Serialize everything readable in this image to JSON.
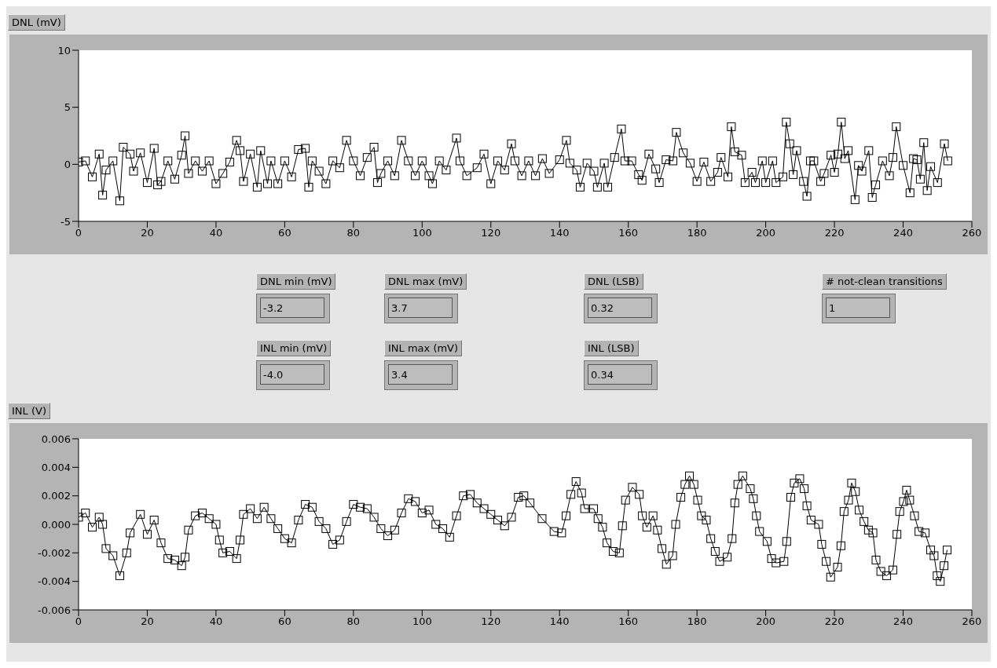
{
  "chart_data": [
    {
      "type": "line",
      "title": "DNL (mV)",
      "xlim": [
        0,
        260
      ],
      "xticks": [
        0,
        20,
        40,
        60,
        80,
        100,
        120,
        140,
        160,
        180,
        200,
        220,
        240,
        260
      ],
      "ylim": [
        -5,
        10
      ],
      "yticks": [
        -5,
        0,
        5,
        10
      ],
      "grid": false,
      "marker": "square",
      "line_style": "solid",
      "legend": false,
      "series": [
        {
          "color": "#000000",
          "x": [
            0,
            2,
            4,
            6,
            7,
            8,
            10,
            12,
            13,
            15,
            16,
            18,
            20,
            22,
            23,
            24,
            26,
            28,
            30,
            31,
            32,
            34,
            36,
            38,
            40,
            42,
            44,
            46,
            47,
            48,
            50,
            52,
            53,
            55,
            56,
            58,
            60,
            62,
            64,
            66,
            67,
            68,
            70,
            72,
            74,
            76,
            78,
            80,
            82,
            84,
            86,
            87,
            88,
            90,
            92,
            94,
            96,
            98,
            100,
            102,
            103,
            105,
            107,
            110,
            111,
            113,
            116,
            118,
            120,
            122,
            124,
            126,
            127,
            129,
            131,
            133,
            135,
            137,
            140,
            142,
            143,
            145,
            146,
            148,
            150,
            151,
            153,
            154,
            156,
            158,
            159,
            161,
            163,
            164,
            166,
            168,
            169,
            171,
            173,
            174,
            176,
            178,
            180,
            182,
            184,
            186,
            187,
            189,
            190,
            191,
            193,
            194,
            196,
            197,
            199,
            200,
            202,
            203,
            205,
            206,
            207,
            208,
            209,
            211,
            212,
            213,
            214,
            216,
            217,
            219,
            220,
            221,
            222,
            223,
            224,
            226,
            227,
            228,
            230,
            231,
            232,
            234,
            236,
            237,
            238,
            240,
            242,
            243,
            244,
            245,
            246,
            247,
            248,
            250,
            252,
            253
          ],
          "values": [
            0.2,
            0.3,
            -1.1,
            0.9,
            -2.7,
            -0.5,
            0.3,
            -3.2,
            1.5,
            0.9,
            -0.6,
            1.0,
            -1.6,
            1.4,
            -1.8,
            -1.5,
            0.3,
            -1.3,
            0.8,
            2.5,
            -0.8,
            0.3,
            -0.6,
            0.3,
            -1.7,
            -0.8,
            0.2,
            2.1,
            1.2,
            -1.5,
            0.9,
            -2.0,
            1.2,
            -1.7,
            0.3,
            -1.7,
            0.3,
            -1.1,
            1.3,
            1.4,
            -2.0,
            0.3,
            -0.6,
            -1.7,
            0.3,
            -0.3,
            2.1,
            0.3,
            -1.0,
            0.6,
            1.5,
            -1.6,
            -0.8,
            0.3,
            -1.0,
            2.1,
            0.3,
            -1.0,
            0.3,
            -1.0,
            -1.7,
            0.3,
            -0.5,
            2.3,
            0.3,
            -1.0,
            -0.3,
            0.9,
            -1.7,
            0.3,
            -0.5,
            1.8,
            0.3,
            -1.0,
            0.3,
            -1.0,
            0.5,
            -0.8,
            0.4,
            2.1,
            0.1,
            -0.5,
            -2.0,
            0.1,
            -0.6,
            -2.0,
            0.1,
            -2.0,
            0.6,
            3.1,
            0.3,
            0.3,
            -0.9,
            -1.4,
            0.9,
            -0.4,
            -1.6,
            0.4,
            0.3,
            2.8,
            1.0,
            0.1,
            -1.5,
            0.2,
            -1.5,
            -0.7,
            0.6,
            -1.1,
            3.3,
            1.1,
            0.8,
            -1.6,
            -0.7,
            -1.6,
            0.3,
            -1.6,
            0.3,
            -1.6,
            -1.1,
            3.7,
            1.8,
            -0.9,
            1.2,
            -1.5,
            -2.8,
            0.3,
            0.3,
            -1.5,
            -0.8,
            0.8,
            -0.7,
            0.9,
            3.7,
            0.5,
            1.2,
            -3.1,
            -0.1,
            -0.6,
            1.2,
            -2.9,
            -1.8,
            0.3,
            -1.0,
            0.6,
            3.3,
            -0.1,
            -2.5,
            0.5,
            0.4,
            -1.3,
            1.9,
            -2.3,
            -0.2,
            -1.6,
            1.8,
            0.3
          ]
        }
      ]
    },
    {
      "type": "other",
      "annotations": [
        "DNL min (mV)",
        "-3.2",
        "INL min (mV)",
        "-4.0",
        "DNL max (mV)",
        "3.7",
        "INL max (mV)",
        "3.4",
        "DNL (LSB)",
        "0.32",
        "INL (LSB)",
        "0.34",
        "# not-clean transitions",
        "1"
      ]
    },
    {
      "type": "line",
      "title": "INL (V)",
      "xlim": [
        0,
        260
      ],
      "xticks": [
        0,
        20,
        40,
        60,
        80,
        100,
        120,
        140,
        160,
        180,
        200,
        220,
        240,
        260
      ],
      "ylim": [
        -0.006,
        0.006
      ],
      "yticks": [
        {
          "value": -0.006,
          "label": "-0.006"
        },
        {
          "value": -0.004,
          "label": "-0.004"
        },
        {
          "value": -0.002,
          "label": "-0.002"
        },
        {
          "value": 0,
          "label": "0.000"
        },
        {
          "value": 0.002,
          "label": "0.002"
        },
        {
          "value": 0.004,
          "label": "0.004"
        },
        {
          "value": 0.006,
          "label": "0.006"
        }
      ],
      "grid": false,
      "marker": "square",
      "line_style": "solid",
      "legend": false,
      "series": [
        {
          "color": "#000000",
          "x": [
            0,
            2,
            4,
            6,
            7,
            8,
            10,
            12,
            14,
            15,
            18,
            20,
            22,
            24,
            26,
            28,
            30,
            31,
            32,
            34,
            36,
            38,
            40,
            41,
            42,
            44,
            46,
            47,
            48,
            50,
            52,
            54,
            56,
            58,
            60,
            62,
            64,
            66,
            68,
            70,
            72,
            74,
            76,
            78,
            80,
            82,
            84,
            86,
            88,
            90,
            92,
            94,
            96,
            98,
            100,
            102,
            104,
            106,
            108,
            110,
            112,
            114,
            116,
            118,
            120,
            122,
            124,
            126,
            128,
            129.6,
            131.4,
            134.9,
            138.4,
            140.6,
            141.9,
            143.3,
            144.8,
            146.4,
            147.3,
            149.9,
            151.2,
            152.5,
            153.8,
            155.6,
            157.4,
            158.3,
            159.2,
            161.2,
            163.2,
            164.1,
            165.4,
            167.2,
            168.5,
            169.8,
            171.1,
            172.9,
            173.8,
            175.3,
            176.5,
            177.8,
            179.1,
            180.2,
            181.3,
            182.7,
            184,
            185.3,
            186.6,
            188.8,
            190.2,
            191,
            191.9,
            193.3,
            195.5,
            196.4,
            197.3,
            198.2,
            200.4,
            201.7,
            203,
            205.3,
            206.1,
            207.3,
            208.3,
            209.9,
            211.2,
            212,
            213.2,
            215.4,
            216.3,
            217.6,
            218.9,
            220.9,
            221.9,
            222.8,
            224.1,
            225,
            226.1,
            227.2,
            228.6,
            229.9,
            231.2,
            232.1,
            233.5,
            235.2,
            237,
            238.2,
            239,
            240.1,
            241,
            241.9,
            243.3,
            244.6,
            246.4,
            248,
            249,
            249.9,
            250.8,
            251.9,
            252.8
          ],
          "values": [
            0.0005,
            0.0008,
            -0.0002,
            0.0005,
            0,
            -0.0017,
            -0.0022,
            -0.0036,
            -0.002,
            -0.0006,
            0.0007,
            -0.0007,
            0.0003,
            -0.0013,
            -0.0024,
            -0.0025,
            -0.0029,
            -0.0023,
            -0.0004,
            0.0006,
            0.0008,
            0.0004,
            0,
            -0.0011,
            -0.002,
            -0.0019,
            -0.0024,
            -0.0011,
            0.0007,
            0.0011,
            0.0004,
            0.0012,
            0.0004,
            -0.0003,
            -0.001,
            -0.0013,
            0.0003,
            0.0014,
            0.0012,
            0.0002,
            -0.0003,
            -0.0014,
            -0.0011,
            0.0002,
            0.0014,
            0.0012,
            0.0011,
            0.0005,
            -0.0003,
            -0.0008,
            -0.0004,
            0.0008,
            0.0018,
            0.0016,
            0.0008,
            0.001,
            0,
            -0.0003,
            -0.0009,
            0.0006,
            0.002,
            0.0021,
            0.0015,
            0.0011,
            0.0007,
            0.0003,
            -0.0001,
            0.0005,
            0.0019,
            0.002,
            0.0015,
            0.0004,
            -0.0005,
            -0.0006,
            0.0006,
            0.0021,
            0.003,
            0.0022,
            0.0011,
            0.0011,
            0.0004,
            -0.0002,
            -0.0013,
            -0.0019,
            -0.002,
            -0.0001,
            0.0017,
            0.0026,
            0.0021,
            0.0006,
            -0.0002,
            0.0006,
            -0.0004,
            -0.0017,
            -0.0028,
            -0.0022,
            0,
            0.0019,
            0.0028,
            0.0034,
            0.0028,
            0.0017,
            0.0006,
            0.0003,
            -0.001,
            -0.0019,
            -0.0026,
            -0.0023,
            -0.001,
            0.0015,
            0.0028,
            0.0034,
            0.0025,
            0.0018,
            0.0006,
            -0.0005,
            -0.0012,
            -0.0024,
            -0.0027,
            -0.0026,
            -0.0012,
            0.0019,
            0.0029,
            0.0032,
            0.0025,
            0.0013,
            0.0003,
            0,
            -0.0014,
            -0.0026,
            -0.0037,
            -0.003,
            -0.0015,
            0.0009,
            0.0017,
            0.0029,
            0.0023,
            0.001,
            0.0002,
            -0.0004,
            -0.0006,
            -0.0025,
            -0.0033,
            -0.0036,
            -0.0032,
            -0.0007,
            0.0009,
            0.0016,
            0.0024,
            0.0017,
            0.0006,
            -0.0005,
            -0.0006,
            -0.0018,
            -0.0022,
            -0.0036,
            -0.004,
            -0.0029,
            -0.0018
          ]
        }
      ]
    }
  ]
}
